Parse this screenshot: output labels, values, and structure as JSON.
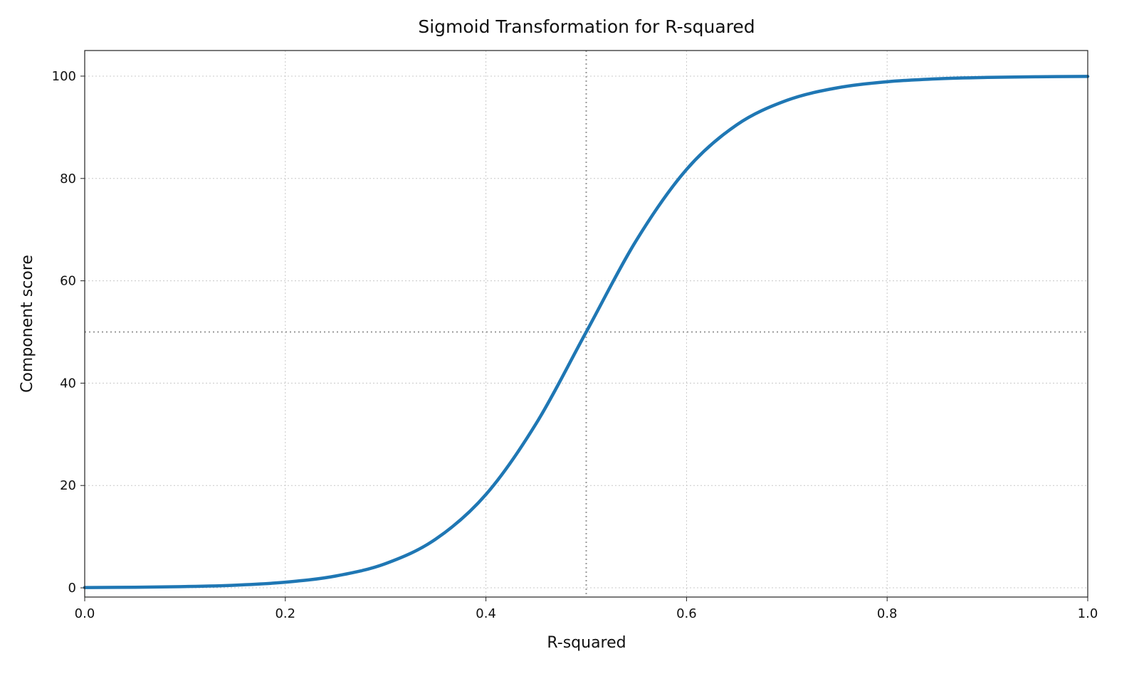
{
  "chart_data": {
    "type": "line",
    "title": "Sigmoid Transformation for R-squared",
    "xlabel": "R-squared",
    "ylabel": "Component score",
    "xlim": [
      0.0,
      1.0
    ],
    "ylim": [
      -1.8,
      105
    ],
    "xticks": [
      "0.0",
      "0.2",
      "0.4",
      "0.6",
      "0.8",
      "1.0"
    ],
    "yticks": [
      "0",
      "20",
      "40",
      "60",
      "80",
      "100"
    ],
    "grid": true,
    "reference_lines": {
      "x": 0.5,
      "y": 50
    },
    "series": [
      {
        "color": "#1f77b4",
        "x": [
          0,
          0.05,
          0.1,
          0.15,
          0.2,
          0.25,
          0.3,
          0.35,
          0.4,
          0.45,
          0.5,
          0.55,
          0.6,
          0.65,
          0.7,
          0.75,
          0.8,
          0.85,
          0.9,
          0.95,
          1.0
        ],
        "y": [
          0.06,
          0.12,
          0.25,
          0.52,
          1.1,
          2.3,
          4.74,
          9.53,
          18.24,
          32.08,
          50,
          67.92,
          81.76,
          90.47,
          95.26,
          97.7,
          98.9,
          99.48,
          99.75,
          99.88,
          99.94
        ]
      }
    ]
  }
}
